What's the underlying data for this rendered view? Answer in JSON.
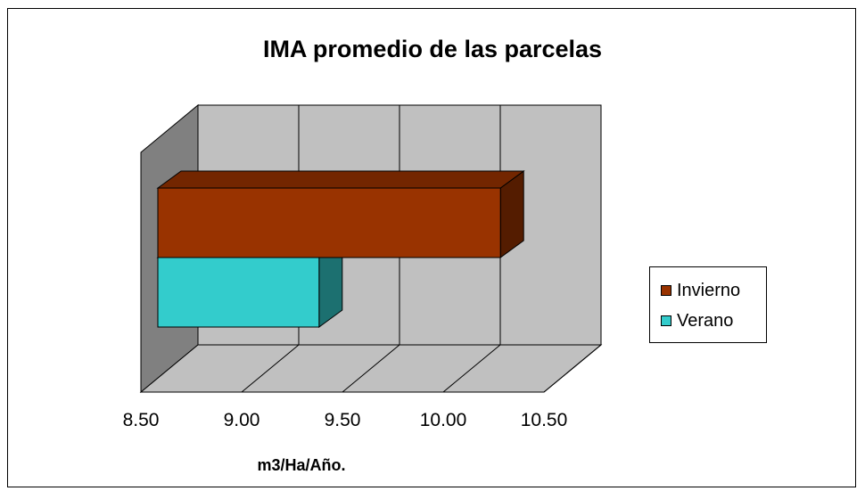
{
  "chart_data": {
    "type": "bar",
    "orientation": "horizontal",
    "style": "3d",
    "title": "IMA promedio de las parcelas",
    "xlabel": "m3/Ha/Año.",
    "ylabel": "",
    "xlim": [
      8.5,
      10.5
    ],
    "ticks": [
      "8.50",
      "9.00",
      "9.50",
      "10.00",
      "10.50"
    ],
    "grid": true,
    "legend_position": "right",
    "series": [
      {
        "name": "Invierno",
        "value": 10.2,
        "color": "#993300"
      },
      {
        "name": "Verano",
        "value": 9.3,
        "color": "#33CCCC"
      }
    ]
  }
}
